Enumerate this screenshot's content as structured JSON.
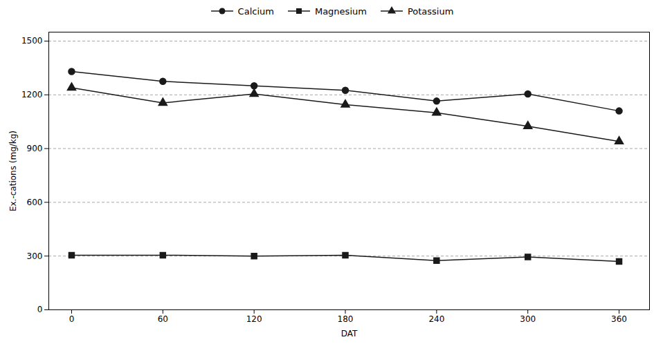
{
  "chart_data": {
    "type": "line",
    "x": [
      0,
      60,
      120,
      180,
      240,
      300,
      360
    ],
    "series": [
      {
        "name": "Calcium",
        "color": "#1a1a1a",
        "marker": "circle",
        "values": [
          1330,
          1275,
          1250,
          1225,
          1165,
          1205,
          1110
        ]
      },
      {
        "name": "Magnesium",
        "color": "#1a1a1a",
        "marker": "square",
        "values": [
          305,
          305,
          300,
          305,
          275,
          295,
          270
        ]
      },
      {
        "name": "Potassium",
        "color": "#1a1a1a",
        "marker": "triangle",
        "values": [
          1240,
          1155,
          1205,
          1145,
          1100,
          1025,
          940
        ]
      }
    ],
    "xlabel": "DAT",
    "ylabel": "Ex.-cations (mg/kg)",
    "xlim": [
      -15,
      380
    ],
    "xticks": [
      0,
      60,
      120,
      180,
      240,
      300,
      360
    ],
    "ylim": [
      0,
      1550
    ],
    "yticks": [
      0,
      300,
      600,
      900,
      1200,
      1500
    ],
    "grid": true,
    "legend": "top"
  }
}
